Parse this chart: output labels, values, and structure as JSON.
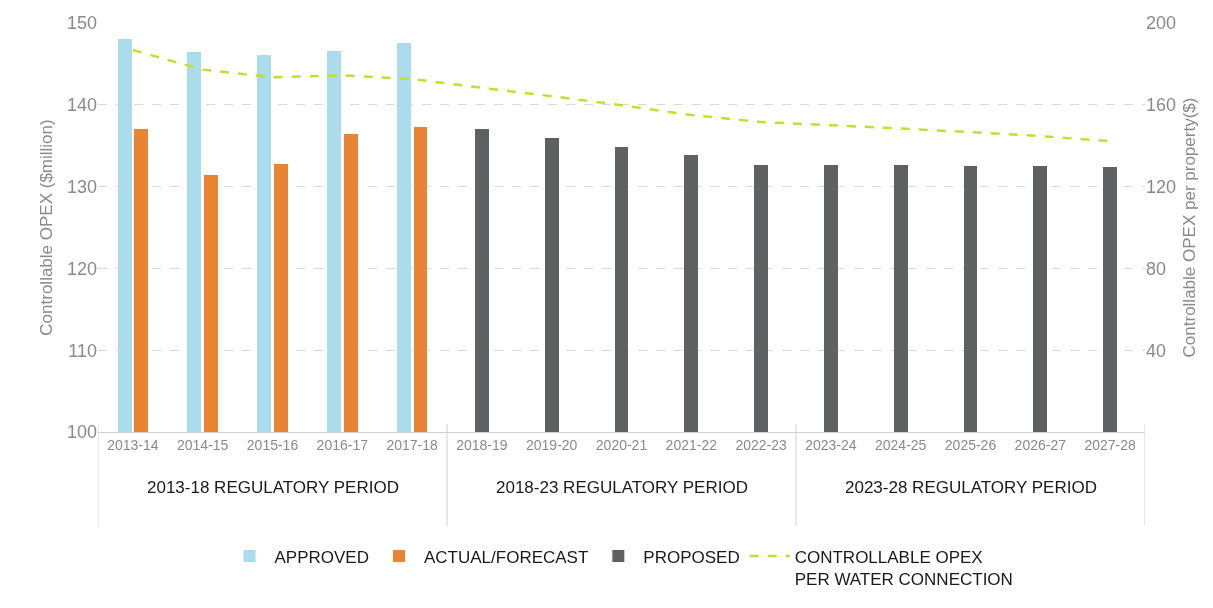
{
  "chart_data": {
    "type": "bar",
    "ylabel": "Controllable OPEX ($million)",
    "y2label": "Controllable OPEX per property($)",
    "categories": [
      "2013-14",
      "2014-15",
      "2015-16",
      "2016-17",
      "2017-18",
      "2018-19",
      "2019-20",
      "2020-21",
      "2021-22",
      "2022-23",
      "2023-24",
      "2024-25",
      "2025-26",
      "2026-27",
      "2027-28"
    ],
    "series": [
      {
        "name": "APPROVED",
        "color": "#aadcee",
        "values": [
          148.0,
          146.4,
          146.1,
          146.6,
          147.5,
          null,
          null,
          null,
          null,
          null,
          null,
          null,
          null,
          null,
          null
        ]
      },
      {
        "name": "ACTUAL/FORECAST",
        "color": "#e98434",
        "values": [
          137.0,
          131.4,
          132.8,
          136.4,
          137.3,
          null,
          null,
          null,
          null,
          null,
          null,
          null,
          null,
          null,
          null
        ]
      },
      {
        "name": "PROPOSED",
        "color": "#5f6062",
        "values": [
          null,
          null,
          null,
          null,
          null,
          137.0,
          135.9,
          134.9,
          133.9,
          132.7,
          132.7,
          132.7,
          132.5,
          132.5,
          132.4
        ]
      },
      {
        "name": "CONTROLLABLE OPEX\nPER WATER CONNECTION",
        "type": "line",
        "axis": "y2",
        "color": "#c8dc2c",
        "line_style": "dashed",
        "marker": "none",
        "values": [
          186.8,
          177.2,
          173.5,
          174.4,
          172.6,
          168.3,
          164.2,
          159.8,
          155.0,
          151.6,
          150.0,
          148.4,
          146.6,
          144.7,
          142.2
        ]
      }
    ],
    "ylim": [
      100,
      150
    ],
    "yticks": [
      100,
      110,
      120,
      130,
      140,
      150
    ],
    "y2lim": [
      0,
      200
    ],
    "y2ticks": [
      40,
      80,
      120,
      160,
      200
    ],
    "grid": "y",
    "legend": "bottom",
    "annotations": [
      "2013-18 REGULATORY PERIOD",
      "2018-23 REGULATORY PERIOD",
      "2023-28 REGULATORY PERIOD"
    ]
  }
}
